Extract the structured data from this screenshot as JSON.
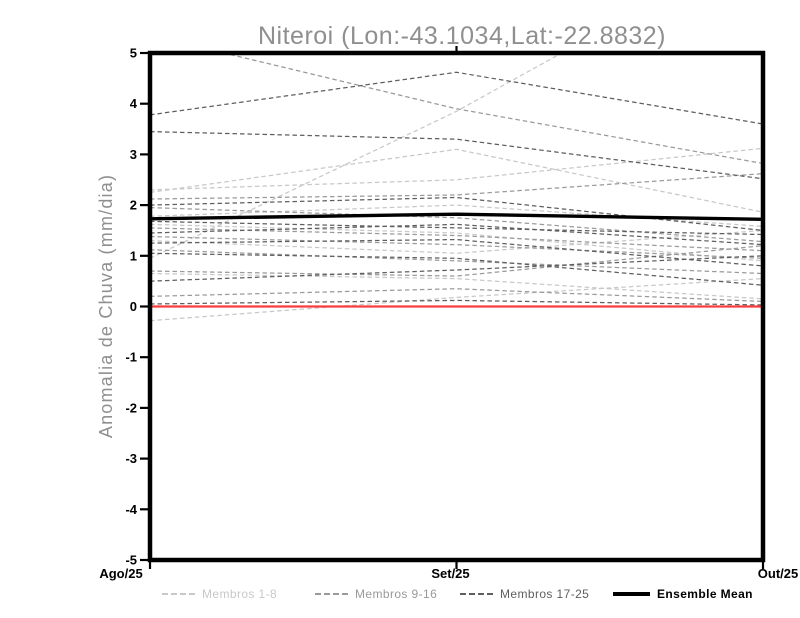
{
  "title": "Niteroi (Lon:-43.1034,Lat:-22.8832)",
  "colors": {
    "muted_text": "#8f8f8f",
    "axis": "#000000",
    "zero_line": "#fa3c3c",
    "members_1_8": "#c8c8c8",
    "members_9_16": "#9a9a9a",
    "members_17_25": "#5e5e5e",
    "ensemble_mean": "#000000"
  },
  "chart_data": {
    "type": "line",
    "title": "Niteroi (Lon:-43.1034,Lat:-22.8832)",
    "xlabel": "",
    "ylabel": "Anomalia de Chuva (mm/dia)",
    "x_categories": [
      "Ago/25",
      "Set/25",
      "Out/25"
    ],
    "ylim": [
      -5,
      5
    ],
    "yticks": [
      5,
      4,
      3,
      2,
      1,
      0,
      -1,
      -2,
      -3,
      -4,
      -5
    ],
    "grid": false,
    "legend_position": "bottom",
    "zero_line": {
      "value": 0,
      "color": "#fa3c3c"
    },
    "groups": [
      {
        "name": "Membros 1-8",
        "color": "#c8c8c8",
        "style": "dashed",
        "members": [
          [
            0.95,
            3.85,
            7.2
          ],
          [
            -0.28,
            0.18,
            0.55
          ],
          [
            2.3,
            2.5,
            3.12
          ],
          [
            2.25,
            3.1,
            1.86
          ],
          [
            1.62,
            1.45,
            0.9
          ],
          [
            1.3,
            1.05,
            1.5
          ],
          [
            0.65,
            0.55,
            0.15
          ],
          [
            1.78,
            2.0,
            1.58
          ]
        ]
      },
      {
        "name": "Membros 9-16",
        "color": "#9a9a9a",
        "style": "dashed",
        "members": [
          [
            5.35,
            3.9,
            2.82
          ],
          [
            2.12,
            2.2,
            2.62
          ],
          [
            1.95,
            1.75,
            1.28
          ],
          [
            1.55,
            1.4,
            1.1
          ],
          [
            1.12,
            0.9,
            0.65
          ],
          [
            0.7,
            0.6,
            1.2
          ],
          [
            0.2,
            0.35,
            0.1
          ],
          [
            1.38,
            1.22,
            0.95
          ]
        ]
      },
      {
        "name": "Membros 17-25",
        "color": "#5e5e5e",
        "style": "dashed",
        "members": [
          [
            3.78,
            4.62,
            3.6
          ],
          [
            3.45,
            3.3,
            2.52
          ],
          [
            2.0,
            2.15,
            1.5
          ],
          [
            1.68,
            1.55,
            1.42
          ],
          [
            1.45,
            1.62,
            1.22
          ],
          [
            1.25,
            1.32,
            0.8
          ],
          [
            1.05,
            0.95,
            0.42
          ],
          [
            0.05,
            0.12,
            0.03
          ],
          [
            0.5,
            0.72,
            1.0
          ]
        ]
      }
    ],
    "mean": {
      "name": "Ensemble Mean",
      "color": "#000000",
      "values": [
        1.73,
        1.82,
        1.72
      ]
    },
    "legend": [
      {
        "label": "Membros 1-8",
        "color": "#c8c8c8",
        "style": "dashed"
      },
      {
        "label": "Membros 9-16",
        "color": "#9a9a9a",
        "style": "dashed"
      },
      {
        "label": "Membros 17-25",
        "color": "#5e5e5e",
        "style": "dashed"
      },
      {
        "label": "Ensemble Mean",
        "color": "#000000",
        "style": "solid"
      }
    ]
  }
}
